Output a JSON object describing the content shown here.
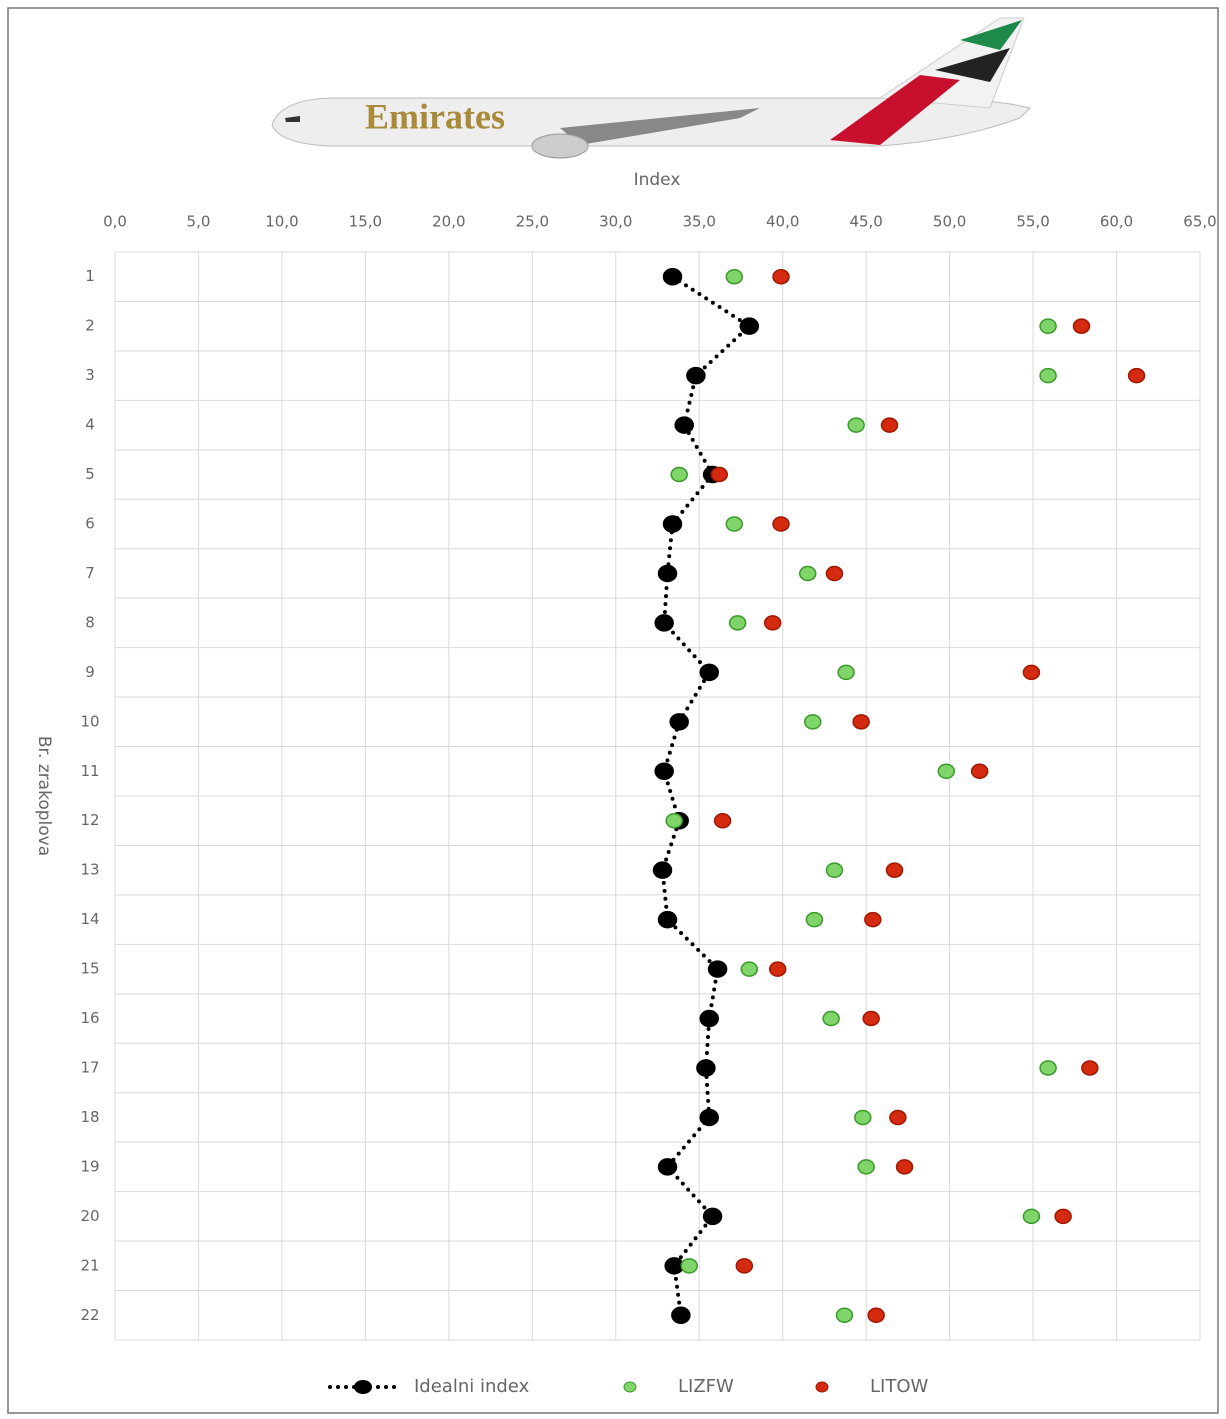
{
  "chart_data": {
    "type": "scatter",
    "logo_text": "Emirates",
    "x_label": "Index",
    "y_label": "Br. zrakoplova",
    "categories": [
      "1",
      "2",
      "3",
      "4",
      "5",
      "6",
      "7",
      "8",
      "9",
      "10",
      "11",
      "12",
      "13",
      "14",
      "15",
      "16",
      "17",
      "18",
      "19",
      "20",
      "21",
      "22"
    ],
    "xlim": [
      0,
      65
    ],
    "xticks": [
      {
        "value": 0,
        "label": "0,0"
      },
      {
        "value": 5,
        "label": "5,0"
      },
      {
        "value": 10,
        "label": "10,0"
      },
      {
        "value": 15,
        "label": "15,0"
      },
      {
        "value": 20,
        "label": "20,0"
      },
      {
        "value": 25,
        "label": "25,0"
      },
      {
        "value": 30,
        "label": "30,0"
      },
      {
        "value": 35,
        "label": "35,0"
      },
      {
        "value": 40,
        "label": "40,0"
      },
      {
        "value": 45,
        "label": "45,0"
      },
      {
        "value": 50,
        "label": "50,0"
      },
      {
        "value": 55,
        "label": "55,0"
      },
      {
        "value": 60,
        "label": "60,0"
      },
      {
        "value": 65,
        "label": "65,0"
      }
    ],
    "grid": true,
    "legend": "bottom",
    "series": [
      {
        "name": "Idealni index",
        "color": "#000000",
        "line_style": "dotted",
        "values": [
          33.4,
          38.0,
          34.8,
          34.1,
          35.8,
          33.4,
          33.1,
          32.9,
          35.6,
          33.8,
          32.9,
          33.8,
          32.8,
          33.1,
          36.1,
          35.6,
          35.4,
          35.6,
          33.1,
          35.8,
          33.5,
          33.9
        ]
      },
      {
        "name": "LIZFW",
        "color": "#7fd46a",
        "values": [
          37.1,
          55.9,
          55.9,
          44.4,
          33.8,
          37.1,
          41.5,
          37.3,
          43.8,
          41.8,
          49.8,
          33.5,
          43.1,
          41.9,
          38.0,
          42.9,
          55.9,
          44.8,
          45.0,
          54.9,
          34.4,
          43.7
        ]
      },
      {
        "name": "LITOW",
        "color": "#d42a10",
        "values": [
          39.9,
          57.9,
          61.2,
          46.4,
          36.2,
          39.9,
          43.1,
          39.4,
          54.9,
          44.7,
          51.8,
          36.4,
          46.7,
          45.4,
          39.7,
          45.3,
          58.4,
          46.9,
          47.3,
          56.8,
          37.7,
          45.6
        ]
      }
    ]
  }
}
